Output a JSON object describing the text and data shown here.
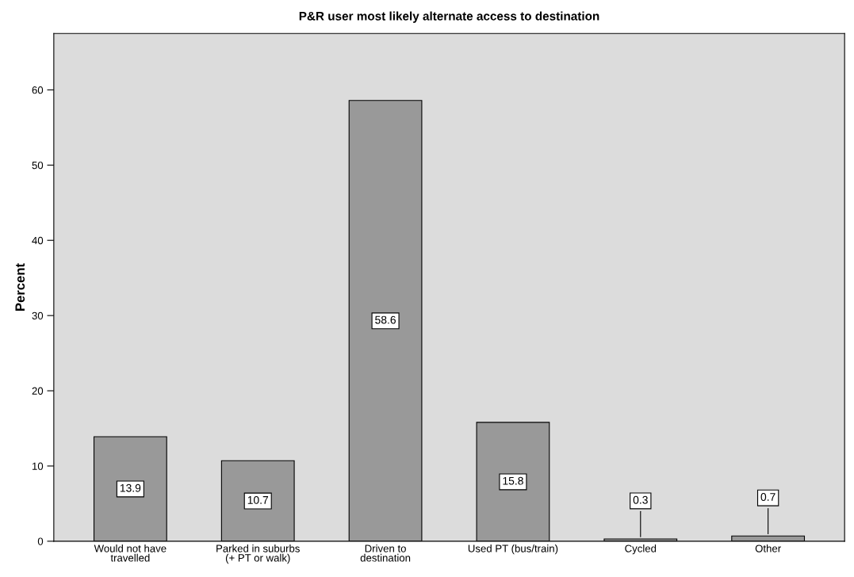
{
  "chart_data": {
    "type": "bar",
    "title": "P&R user most likely alternate access to destination",
    "ylabel": "Percent",
    "categories": [
      "Would not have\ntravelled",
      "Parked in suburbs\n(+ PT or walk)",
      "Driven to\ndestination",
      "Used PT (bus/train)",
      "Cycled",
      "Other"
    ],
    "values": [
      13.9,
      10.7,
      58.6,
      15.8,
      0.3,
      0.7
    ],
    "color": "#999999",
    "ylim": [
      0,
      67.5
    ],
    "yticks": [
      0,
      10,
      20,
      30,
      40,
      50,
      60
    ],
    "data_labels": true,
    "grid": false,
    "legend": false
  }
}
